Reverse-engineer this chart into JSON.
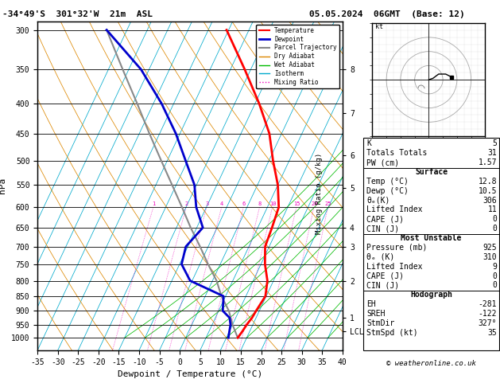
{
  "title_main": "-34°49'S  301°32'W  21m  ASL",
  "title_date": "05.05.2024  06GMT  (Base: 12)",
  "xlabel": "Dewpoint / Temperature (°C)",
  "ylabel_left": "hPa",
  "xlim": [
    -35,
    40
  ],
  "pres_ticks": [
    300,
    350,
    400,
    450,
    500,
    550,
    600,
    650,
    700,
    750,
    800,
    850,
    900,
    950,
    1000
  ],
  "skew_factor": 38,
  "temp_profile_p": [
    1000,
    975,
    950,
    925,
    900,
    850,
    800,
    750,
    700,
    650,
    600,
    550,
    500,
    450,
    400,
    350,
    300
  ],
  "temp_profile_T": [
    12.8,
    13.2,
    13.5,
    14.0,
    14.2,
    14.8,
    13.5,
    11.0,
    9.0,
    8.5,
    7.8,
    5.0,
    1.0,
    -3.0,
    -9.0,
    -16.5,
    -25.5
  ],
  "dewp_profile_p": [
    1000,
    975,
    950,
    925,
    900,
    850,
    800,
    750,
    700,
    650,
    600,
    550,
    500,
    450,
    400,
    350,
    300
  ],
  "dewp_profile_T": [
    10.5,
    10.0,
    9.5,
    8.5,
    6.0,
    4.5,
    -5.5,
    -9.5,
    -10.5,
    -8.5,
    -12.5,
    -15.5,
    -20.5,
    -26.0,
    -33.0,
    -42.0,
    -55.0
  ],
  "parcel_profile_p": [
    1000,
    950,
    900,
    850,
    800,
    750,
    700,
    650,
    600,
    550,
    500,
    450,
    400,
    350,
    300
  ],
  "parcel_profile_T": [
    12.8,
    10.0,
    7.5,
    4.0,
    1.0,
    -3.0,
    -7.0,
    -11.5,
    -16.0,
    -21.0,
    -26.5,
    -32.5,
    -39.0,
    -46.5,
    -55.0
  ],
  "temp_color": "#ff0000",
  "dewp_color": "#0000cc",
  "parcel_color": "#888888",
  "dry_adiabat_color": "#dd8800",
  "wet_adiabat_color": "#00bb00",
  "isotherm_color": "#00aacc",
  "mixing_ratio_color": "#ee00bb",
  "mixing_ratios": [
    1,
    2,
    3,
    4,
    6,
    8,
    10,
    15,
    20,
    25
  ],
  "km_ticks_km": [
    1,
    2,
    3,
    4,
    5,
    6,
    7,
    8
  ],
  "km_ticks_hPa": [
    925,
    800,
    700,
    650,
    556,
    490,
    415,
    350
  ],
  "lcl_hPa": 975,
  "stats_K": "5",
  "stats_TT": "31",
  "stats_PW": "1.57",
  "stats_SfcTemp": "12.8",
  "stats_SfcDewp": "10.5",
  "stats_theta_e": "306",
  "stats_LI": "11",
  "stats_CAPE": "0",
  "stats_CIN": "0",
  "stats_MU_P": "925",
  "stats_MU_theta_e": "310",
  "stats_MU_LI": "9",
  "stats_MU_CAPE": "0",
  "stats_MU_CIN": "0",
  "stats_EH": "-281",
  "stats_SREH": "-122",
  "stats_StmDir": "327°",
  "stats_StmSpd": "35",
  "copyright": "© weatheronline.co.uk"
}
